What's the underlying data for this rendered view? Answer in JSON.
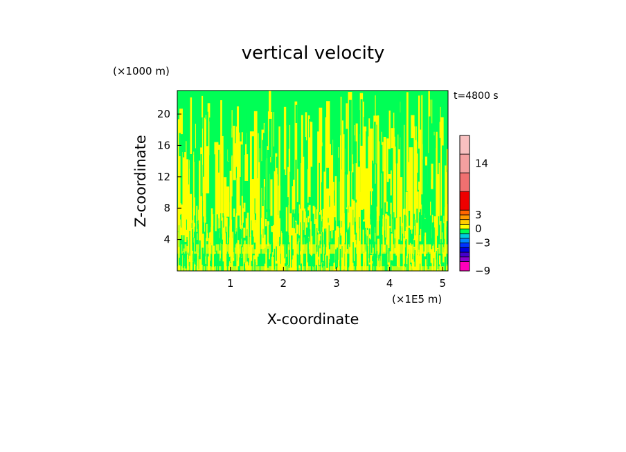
{
  "chart_data": {
    "type": "heatmap",
    "title": "vertical velocity",
    "xlabel": "X-coordinate",
    "ylabel": "Z-coordinate",
    "x_unit_label": "(×1E5 m)",
    "y_unit_label": "(×1000 m)",
    "time_label": "t=4800 s",
    "xlim": [
      0,
      5.1
    ],
    "ylim": [
      0,
      23
    ],
    "x_ticks": [
      1,
      2,
      3,
      4,
      5
    ],
    "y_ticks": [
      4,
      8,
      12,
      16,
      20
    ],
    "grid": false,
    "field_colors": {
      "positive_weak": "#ffff00",
      "negative_weak": "#00ff55"
    },
    "colorbar": {
      "tick_labels": [
        {
          "value": 14,
          "label": "14"
        },
        {
          "value": 3,
          "label": "3"
        },
        {
          "value": 0,
          "label": "0"
        },
        {
          "value": -3,
          "label": "-3"
        },
        {
          "value": -9,
          "label": "-9"
        }
      ],
      "bands": [
        {
          "from": -9,
          "to": -7,
          "color": "#ff00bb"
        },
        {
          "from": -7,
          "to": -6,
          "color": "#8800cc"
        },
        {
          "from": -6,
          "to": -5,
          "color": "#4400cc"
        },
        {
          "from": -5,
          "to": -4,
          "color": "#0000dd"
        },
        {
          "from": -4,
          "to": -3,
          "color": "#0033ff"
        },
        {
          "from": -3,
          "to": -2,
          "color": "#0088ff"
        },
        {
          "from": -2,
          "to": -1,
          "color": "#00ccdd"
        },
        {
          "from": -1,
          "to": 0,
          "color": "#00ff55"
        },
        {
          "from": 0,
          "to": 1,
          "color": "#ffff00"
        },
        {
          "from": 1,
          "to": 2,
          "color": "#ffcc00"
        },
        {
          "from": 2,
          "to": 3,
          "color": "#ff9900"
        },
        {
          "from": 3,
          "to": 4,
          "color": "#ff6600"
        },
        {
          "from": 4,
          "to": 8,
          "color": "#ee0000"
        },
        {
          "from": 8,
          "to": 12,
          "color": "#f07070"
        },
        {
          "from": 12,
          "to": 16,
          "color": "#f4a0a0"
        },
        {
          "from": 16,
          "to": 20,
          "color": "#f8c0c0"
        }
      ]
    }
  }
}
